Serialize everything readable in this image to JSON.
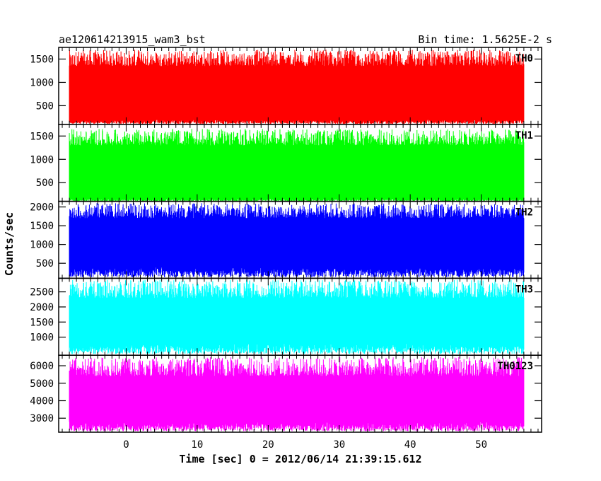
{
  "header": {
    "left_title": "ae120614213915_wam3_bst",
    "right_title": "Bin time: 1.5625E-2 s"
  },
  "chart_data": {
    "type": "line",
    "title": "ae120614213915_wam3_bst",
    "subtitle": "Bin time: 1.5625E-2 s",
    "xlabel": "Time [sec] 0 = 2012/06/14 21:39:15.612",
    "ylabel": "Counts/sec",
    "xlim": [
      -9.5,
      58.5
    ],
    "data_xrange": [
      -8,
      56
    ],
    "xticks": [
      0,
      10,
      20,
      30,
      40,
      50
    ],
    "grid": false,
    "panels": [
      {
        "name": "TH0",
        "color": "#ff0000",
        "ylim": [
          100,
          1750
        ],
        "yticks": [
          500,
          1000,
          1500
        ],
        "baseline_range": [
          200,
          1350
        ],
        "peak_max": 1700
      },
      {
        "name": "TH1",
        "color": "#00ff00",
        "ylim": [
          100,
          1750
        ],
        "yticks": [
          500,
          1000,
          1500
        ],
        "baseline_range": [
          150,
          1300
        ],
        "peak_max": 1650
      },
      {
        "name": "TH2",
        "color": "#0000ff",
        "ylim": [
          100,
          2150
        ],
        "yticks": [
          500,
          1000,
          1500,
          2000
        ],
        "baseline_range": [
          400,
          1700
        ],
        "peak_max": 2100
      },
      {
        "name": "TH3",
        "color": "#00ffff",
        "ylim": [
          400,
          2950
        ],
        "yticks": [
          1000,
          1500,
          2000,
          2500
        ],
        "baseline_range": [
          800,
          2300
        ],
        "peak_max": 2900
      },
      {
        "name": "TH0123",
        "color": "#ff00ff",
        "ylim": [
          2200,
          6600
        ],
        "yticks": [
          3000,
          4000,
          5000,
          6000
        ],
        "baseline_range": [
          2800,
          5400
        ],
        "peak_max": 6500
      }
    ]
  }
}
